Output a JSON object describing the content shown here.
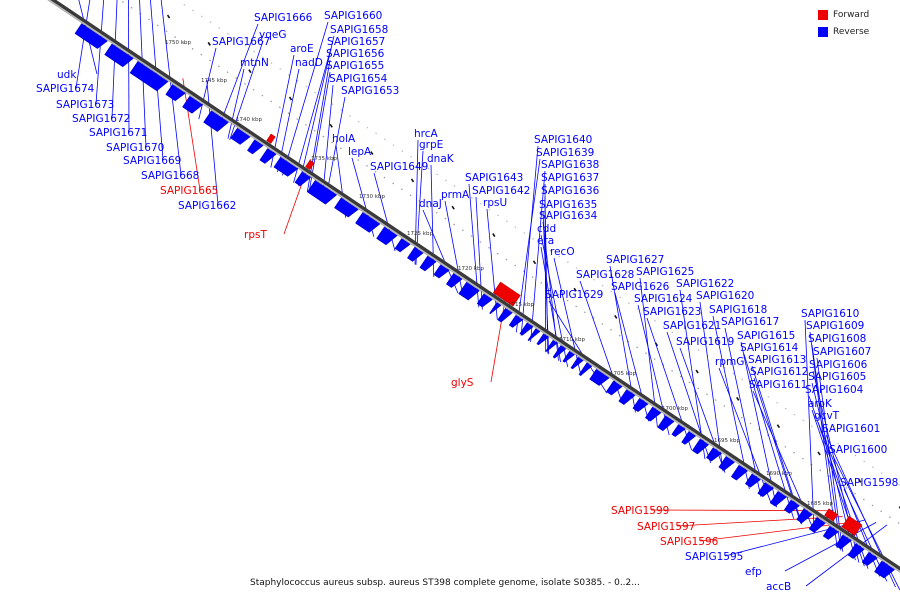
{
  "caption": "Staphylococcus aureus subsp. aureus ST398 complete genome, isolate S0385. - 0..2...",
  "legend": [
    {
      "label": "Forward",
      "color": "#ee0000"
    },
    {
      "label": "Reverse",
      "color": "#0000ff"
    }
  ],
  "colors": {
    "forward": "#ee0000",
    "reverse": "#0000ff",
    "axis": "#555555"
  },
  "ticks": [
    "1750 kbp",
    "1745 kbp",
    "1740 kbp",
    "1735 kbp",
    "1730 kbp",
    "1725 kbp",
    "1720 kbp",
    "1715 kbp",
    "1710 kbp",
    "1705 kbp",
    "1700 kbp",
    "1695 kbp",
    "1690 kbp",
    "1685 kbp"
  ],
  "labels_left": [
    {
      "text": "udk",
      "strand": "reverse"
    },
    {
      "text": "SAPIG1674",
      "strand": "reverse"
    },
    {
      "text": "SAPIG1673",
      "strand": "reverse"
    },
    {
      "text": "SAPIG1672",
      "strand": "reverse"
    },
    {
      "text": "SAPIG1671",
      "strand": "reverse"
    },
    {
      "text": "SAPIG1670",
      "strand": "reverse"
    },
    {
      "text": "SAPIG1669",
      "strand": "reverse"
    },
    {
      "text": "SAPIG1668",
      "strand": "reverse"
    },
    {
      "text": "SAPIG1665",
      "strand": "forward"
    },
    {
      "text": "SAPIG1662",
      "strand": "reverse"
    },
    {
      "text": "rpsT",
      "strand": "forward"
    },
    {
      "text": "glyS",
      "strand": "forward"
    },
    {
      "text": "SAPIG1599",
      "strand": "forward"
    },
    {
      "text": "SAPIG1597",
      "strand": "forward"
    },
    {
      "text": "SAPIG1596",
      "strand": "forward"
    },
    {
      "text": "SAPIG1595",
      "strand": "reverse"
    },
    {
      "text": "efp",
      "strand": "reverse"
    },
    {
      "text": "accB",
      "strand": "reverse"
    }
  ],
  "labels_right": [
    {
      "text": "SAPIG1666",
      "strand": "reverse"
    },
    {
      "text": "SAPIG1667",
      "strand": "reverse"
    },
    {
      "text": "SAPIG1660",
      "strand": "reverse"
    },
    {
      "text": "SAPIG1658",
      "strand": "reverse"
    },
    {
      "text": "yqeG",
      "strand": "reverse"
    },
    {
      "text": "SAPIG1657",
      "strand": "reverse"
    },
    {
      "text": "aroE",
      "strand": "reverse"
    },
    {
      "text": "SAPIG1656",
      "strand": "reverse"
    },
    {
      "text": "mtnN",
      "strand": "reverse"
    },
    {
      "text": "nadD",
      "strand": "reverse"
    },
    {
      "text": "SAPIG1655",
      "strand": "reverse"
    },
    {
      "text": "SAPIG1654",
      "strand": "reverse"
    },
    {
      "text": "SAPIG1653",
      "strand": "reverse"
    },
    {
      "text": "holA",
      "strand": "reverse"
    },
    {
      "text": "hrcA",
      "strand": "reverse"
    },
    {
      "text": "lepA",
      "strand": "reverse"
    },
    {
      "text": "grpE",
      "strand": "reverse"
    },
    {
      "text": "dnaK",
      "strand": "reverse"
    },
    {
      "text": "SAPIG1649",
      "strand": "reverse"
    },
    {
      "text": "SAPIG1640",
      "strand": "reverse"
    },
    {
      "text": "SAPIG1639",
      "strand": "reverse"
    },
    {
      "text": "SAPIG1638",
      "strand": "reverse"
    },
    {
      "text": "SAPIG1643",
      "strand": "reverse"
    },
    {
      "text": "SAPIG1637",
      "strand": "reverse"
    },
    {
      "text": "SAPIG1642",
      "strand": "reverse"
    },
    {
      "text": "prmA",
      "strand": "reverse"
    },
    {
      "text": "SAPIG1636",
      "strand": "reverse"
    },
    {
      "text": "dnaJ",
      "strand": "reverse"
    },
    {
      "text": "rpsU",
      "strand": "reverse"
    },
    {
      "text": "SAPIG1635",
      "strand": "reverse"
    },
    {
      "text": "SAPIG1634",
      "strand": "reverse"
    },
    {
      "text": "cdd",
      "strand": "reverse"
    },
    {
      "text": "era",
      "strand": "reverse"
    },
    {
      "text": "recO",
      "strand": "reverse"
    },
    {
      "text": "SAPIG1627",
      "strand": "reverse"
    },
    {
      "text": "SAPIG1628",
      "strand": "reverse"
    },
    {
      "text": "SAPIG1625",
      "strand": "reverse"
    },
    {
      "text": "SAPIG1626",
      "strand": "reverse"
    },
    {
      "text": "SAPIG1622",
      "strand": "reverse"
    },
    {
      "text": "SAPIG1629",
      "strand": "reverse"
    },
    {
      "text": "SAPIG1624",
      "strand": "reverse"
    },
    {
      "text": "SAPIG1620",
      "strand": "reverse"
    },
    {
      "text": "SAPIG1623",
      "strand": "reverse"
    },
    {
      "text": "SAPIG1618",
      "strand": "reverse"
    },
    {
      "text": "SAPIG1610",
      "strand": "reverse"
    },
    {
      "text": "SAPIG1621",
      "strand": "reverse"
    },
    {
      "text": "SAPIG1617",
      "strand": "reverse"
    },
    {
      "text": "SAPIG1609",
      "strand": "reverse"
    },
    {
      "text": "SAPIG1619",
      "strand": "reverse"
    },
    {
      "text": "SAPIG1615",
      "strand": "reverse"
    },
    {
      "text": "SAPIG1608",
      "strand": "reverse"
    },
    {
      "text": "SAPIG1614",
      "strand": "reverse"
    },
    {
      "text": "SAPIG1607",
      "strand": "reverse"
    },
    {
      "text": "rpmG",
      "strand": "reverse"
    },
    {
      "text": "SAPIG1613",
      "strand": "reverse"
    },
    {
      "text": "SAPIG1606",
      "strand": "reverse"
    },
    {
      "text": "SAPIG1612",
      "strand": "reverse"
    },
    {
      "text": "SAPIG1605",
      "strand": "reverse"
    },
    {
      "text": "SAPIG1611",
      "strand": "reverse"
    },
    {
      "text": "SAPIG1604",
      "strand": "reverse"
    },
    {
      "text": "aroK",
      "strand": "reverse"
    },
    {
      "text": "gcvT",
      "strand": "reverse"
    },
    {
      "text": "SAPIG1601",
      "strand": "reverse"
    },
    {
      "text": "SAPIG1600",
      "strand": "reverse"
    },
    {
      "text": "SAPIG1598",
      "strand": "reverse"
    }
  ]
}
